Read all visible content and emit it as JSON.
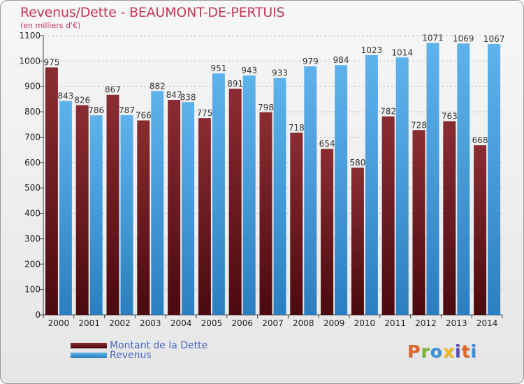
{
  "chart_data": {
    "type": "bar",
    "title": "Revenus/Dette - BEAUMONT-DE-PERTUIS",
    "subtitle": "(en milliers d'€)",
    "categories": [
      "2000",
      "2001",
      "2002",
      "2003",
      "2004",
      "2005",
      "2006",
      "2007",
      "2008",
      "2009",
      "2010",
      "2011",
      "2012",
      "2013",
      "2014"
    ],
    "series": [
      {
        "name": "Montant de la Dette",
        "color": "#7a1f26",
        "values": [
          975,
          826,
          867,
          766,
          847,
          775,
          891,
          798,
          718,
          654,
          580,
          782,
          728,
          763,
          668
        ]
      },
      {
        "name": "Revenus",
        "color": "#4aa3e4",
        "values": [
          843,
          786,
          787,
          882,
          838,
          951,
          943,
          933,
          979,
          984,
          1023,
          1014,
          1071,
          1069,
          1067
        ]
      }
    ],
    "ylim": [
      0,
      1100
    ],
    "yticks": [
      0,
      100,
      200,
      300,
      400,
      500,
      600,
      700,
      800,
      900,
      1000,
      1100
    ],
    "grid": "horizontal dashed",
    "legend": "bottom-left"
  },
  "logo_text": "Proxiti",
  "colors": {
    "title": "#c2395a",
    "legend_text": "#4a67c7",
    "logo": [
      "#e0682c",
      "#7cb530",
      "#3a8fd6",
      "#f2b418",
      "#5b49b8",
      "#e0682c",
      "#3a8fd6"
    ]
  }
}
